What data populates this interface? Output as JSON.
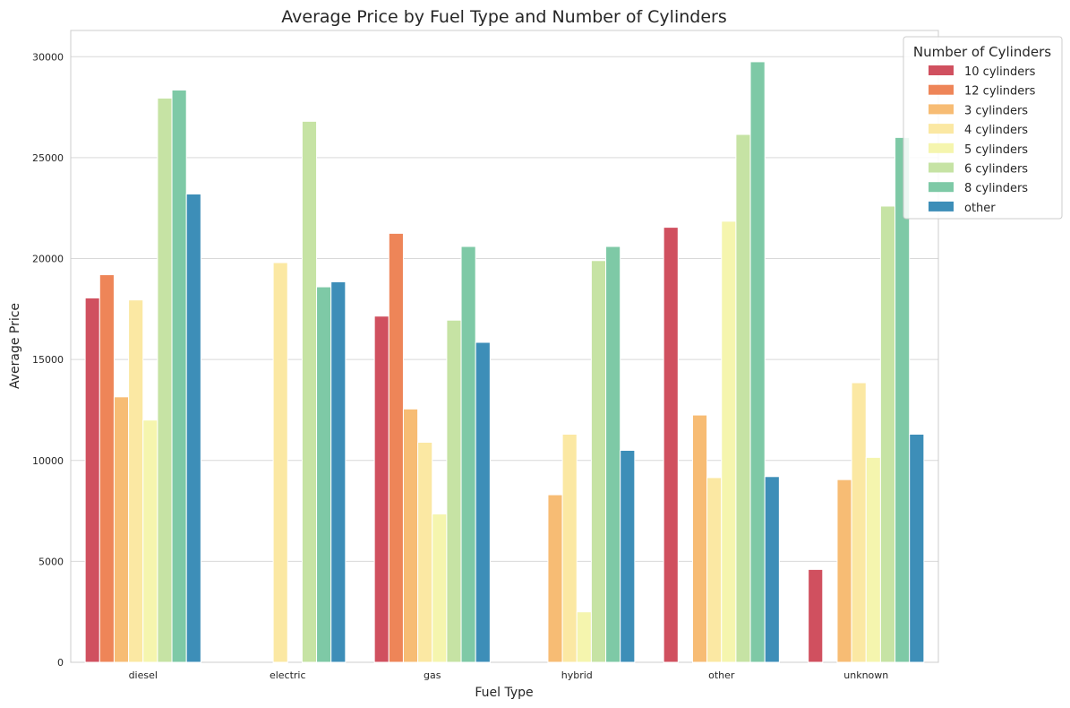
{
  "chart_data": {
    "type": "bar",
    "title": "Average Price by Fuel Type and Number of Cylinders",
    "xlabel": "Fuel Type",
    "ylabel": "Average Price",
    "ylim": [
      0,
      31300
    ],
    "yticks": [
      0,
      5000,
      10000,
      15000,
      20000,
      25000,
      30000
    ],
    "grid": true,
    "legend": {
      "title": "Number of Cylinders",
      "placement": "top-right"
    },
    "categories": [
      "diesel",
      "electric",
      "gas",
      "hybrid",
      "other",
      "unknown"
    ],
    "series": [
      {
        "name": "10 cylinders",
        "color": "#d0505f",
        "values": [
          18050,
          null,
          17150,
          null,
          21550,
          4600
        ]
      },
      {
        "name": "12 cylinders",
        "color": "#ee8558",
        "values": [
          19200,
          null,
          21250,
          null,
          null,
          null
        ]
      },
      {
        "name": "3 cylinders",
        "color": "#f7bc74",
        "values": [
          13150,
          null,
          12550,
          8300,
          12250,
          9050
        ]
      },
      {
        "name": "4 cylinders",
        "color": "#fbe8a3",
        "values": [
          17950,
          19800,
          10900,
          11300,
          9150,
          13850
        ]
      },
      {
        "name": "5 cylinders",
        "color": "#f5f5ae",
        "values": [
          12000,
          null,
          7350,
          2500,
          21850,
          10150
        ]
      },
      {
        "name": "6 cylinders",
        "color": "#c6e3a4",
        "values": [
          27950,
          26800,
          16950,
          19900,
          26150,
          22600
        ]
      },
      {
        "name": "8 cylinders",
        "color": "#7ec9a6",
        "values": [
          28350,
          18600,
          20600,
          20600,
          29750,
          26000
        ]
      },
      {
        "name": "other",
        "color": "#3d8eb8",
        "values": [
          23200,
          18850,
          15850,
          10500,
          9200,
          11300
        ]
      }
    ]
  }
}
